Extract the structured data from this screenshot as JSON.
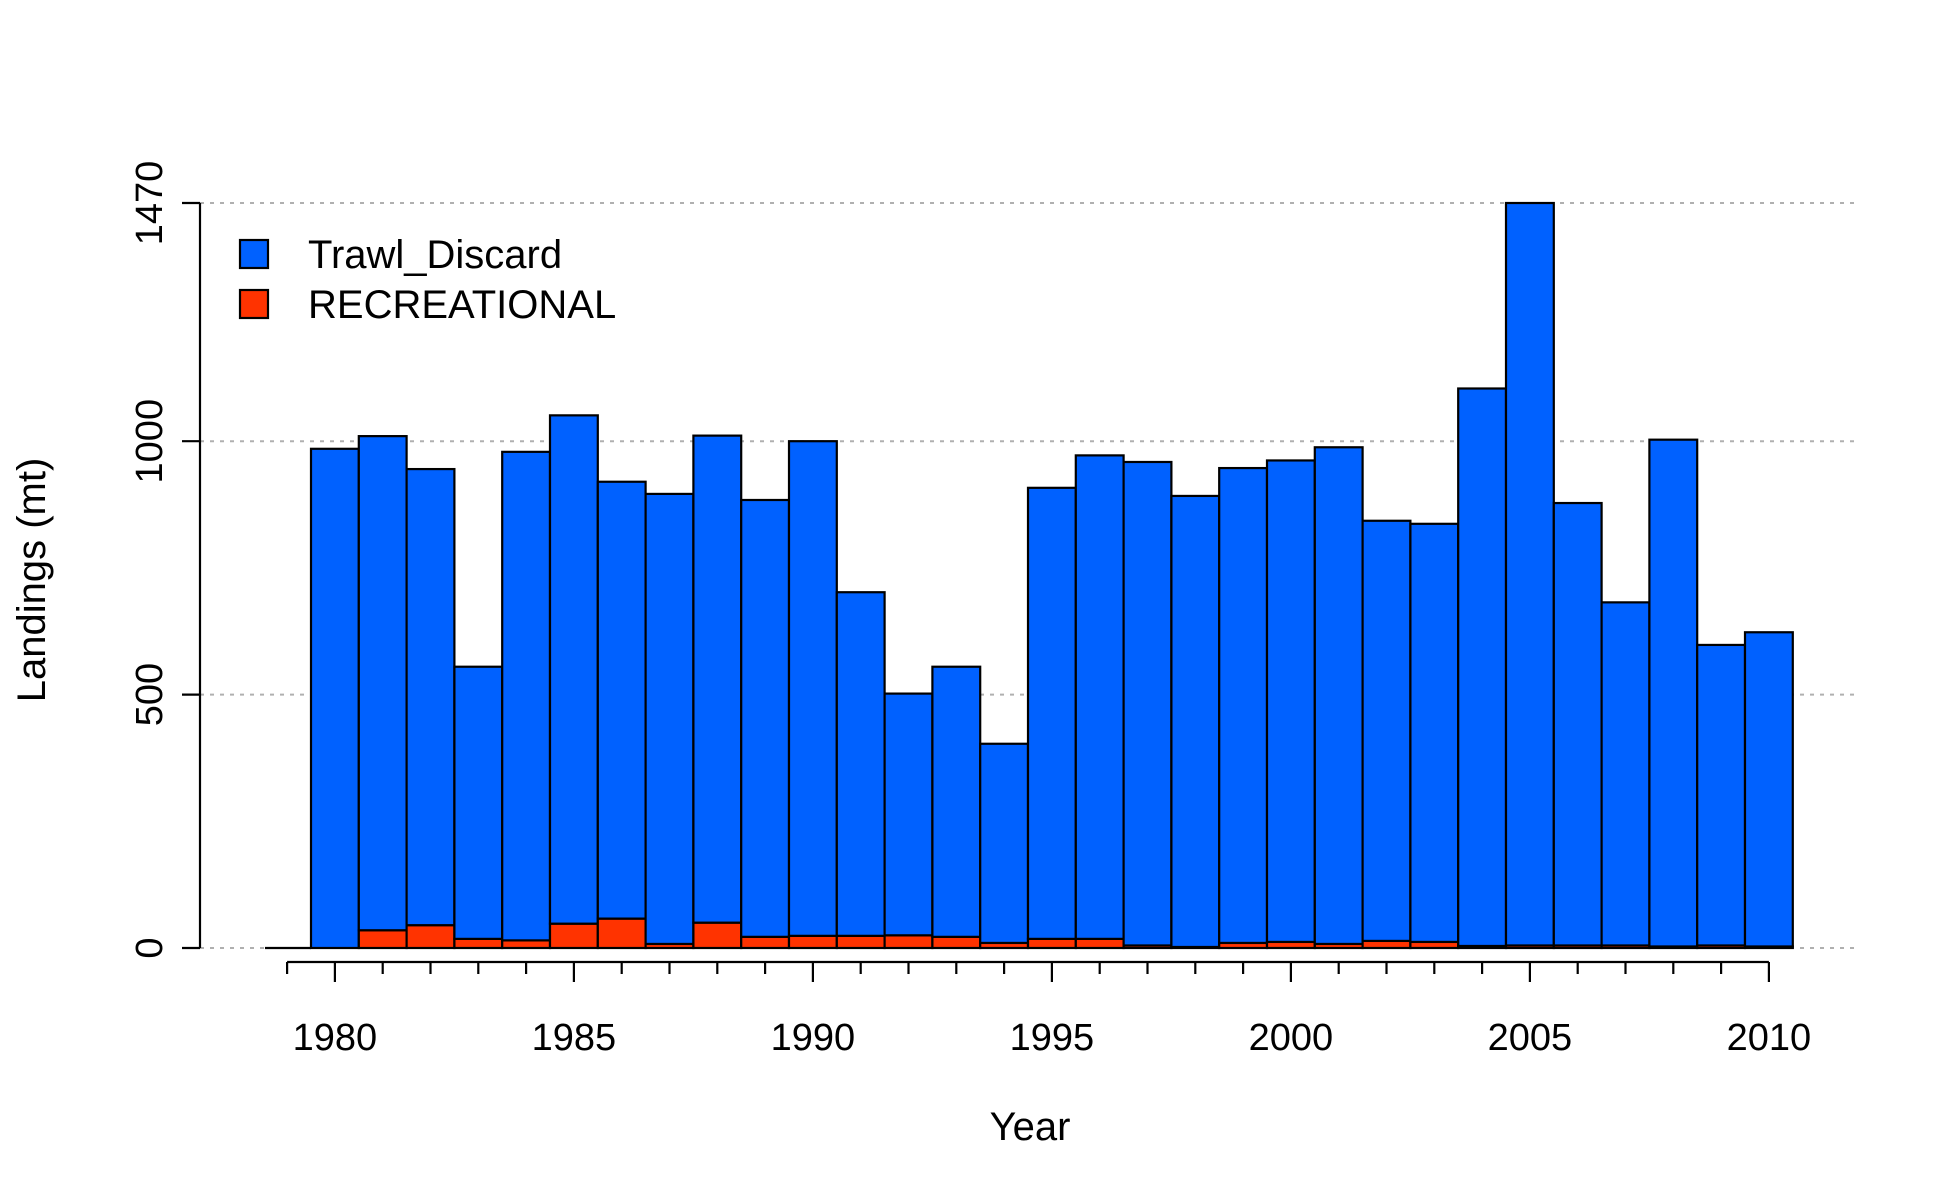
{
  "chart_data": {
    "type": "bar",
    "stacked": true,
    "xlabel": "Year",
    "ylabel": "Landings (mt)",
    "x": [
      1980,
      1981,
      1982,
      1983,
      1984,
      1985,
      1986,
      1987,
      1988,
      1989,
      1990,
      1991,
      1992,
      1993,
      1994,
      1995,
      1996,
      1997,
      1998,
      1999,
      2000,
      2001,
      2002,
      2003,
      2004,
      2005,
      2006,
      2007,
      2008,
      2009,
      2010
    ],
    "series": [
      {
        "name": "RECREATIONAL",
        "color": "#ff3300",
        "values": [
          0,
          35,
          45,
          18,
          15,
          48,
          58,
          8,
          50,
          22,
          24,
          24,
          25,
          22,
          10,
          18,
          18,
          5,
          2,
          10,
          12,
          8,
          14,
          12,
          4,
          5,
          5,
          5,
          3,
          5,
          3
        ]
      },
      {
        "name": "Trawl_Discard",
        "color": "#0061ff",
        "values": [
          985,
          975,
          900,
          537,
          964,
          1003,
          862,
          888,
          961,
          862,
          976,
          678,
          477,
          533,
          393,
          890,
          954,
          954,
          890,
          937,
          950,
          980,
          829,
          825,
          1100,
          1465,
          873,
          677,
          1000,
          593,
          620
        ]
      }
    ],
    "xticks": [
      1980,
      1985,
      1990,
      1995,
      2000,
      2005,
      2010
    ],
    "xtick_labels": [
      "1980",
      "1985",
      "1990",
      "1995",
      "2000",
      "2005",
      "2010"
    ],
    "xlim": [
      1979,
      2010.5
    ],
    "yticks": [
      0,
      500,
      1000,
      1470
    ],
    "ytick_labels": [
      "0",
      "500",
      "1000",
      "1470"
    ],
    "ylim": [
      0,
      1470
    ],
    "grid": "horizontal-dotted",
    "legend": {
      "placement": "top-left",
      "entries": [
        "Trawl_Discard",
        "RECREATIONAL"
      ]
    }
  }
}
